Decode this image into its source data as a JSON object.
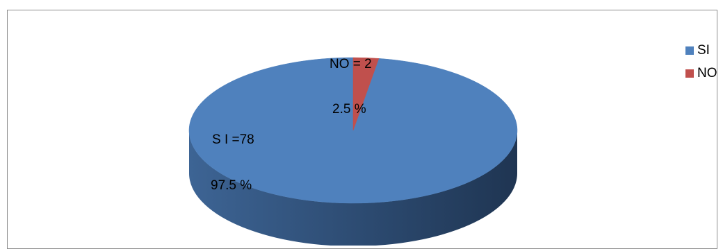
{
  "chart_data": {
    "type": "pie",
    "title": "",
    "slices": [
      {
        "name": "SI",
        "value": 78,
        "percent_label": "97.5  %",
        "count_label": "S I =78",
        "color": "#4F81BD"
      },
      {
        "name": "NO",
        "value": 2,
        "percent_label": "2.5  %",
        "count_label": "NO = 2",
        "color": "#C0504D"
      }
    ],
    "legend": {
      "placement": "right",
      "entries": [
        "SI",
        "NO"
      ]
    }
  }
}
